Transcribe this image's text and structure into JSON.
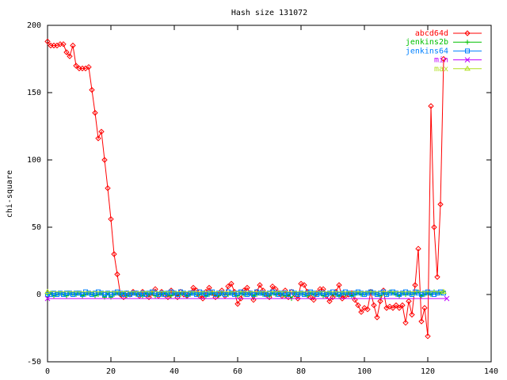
{
  "chart_data": {
    "type": "line",
    "title": "Hash size 131072",
    "ylabel": "chi-square",
    "xlim": [
      0,
      140
    ],
    "xticks": [
      0,
      20,
      40,
      60,
      80,
      100,
      120,
      140
    ],
    "ylim": [
      -50,
      200
    ],
    "yticks": [
      -50,
      0,
      50,
      100,
      150,
      200
    ],
    "legend": "top-right",
    "x": [
      0,
      1,
      2,
      3,
      4,
      5,
      6,
      7,
      8,
      9,
      10,
      11,
      12,
      13,
      14,
      15,
      16,
      17,
      18,
      19,
      20,
      21,
      22,
      23,
      24,
      25,
      26,
      27,
      28,
      29,
      30,
      31,
      32,
      33,
      34,
      35,
      36,
      37,
      38,
      39,
      40,
      41,
      42,
      43,
      44,
      45,
      46,
      47,
      48,
      49,
      50,
      51,
      52,
      53,
      54,
      55,
      56,
      57,
      58,
      59,
      60,
      61,
      62,
      63,
      64,
      65,
      66,
      67,
      68,
      69,
      70,
      71,
      72,
      73,
      74,
      75,
      76,
      77,
      78,
      79,
      80,
      81,
      82,
      83,
      84,
      85,
      86,
      87,
      88,
      89,
      90,
      91,
      92,
      93,
      94,
      95,
      96,
      97,
      98,
      99,
      100,
      101,
      102,
      103,
      104,
      105,
      106,
      107,
      108,
      109,
      110,
      111,
      112,
      113,
      114,
      115,
      116,
      117,
      118,
      119,
      120,
      121,
      122,
      123,
      124,
      125
    ],
    "series": [
      {
        "name": "abcd64d",
        "color": "#ff0000",
        "values": [
          188,
          185,
          185,
          185,
          186,
          186,
          180,
          177,
          185,
          170,
          168,
          168,
          168,
          169,
          152,
          135,
          116,
          121,
          100,
          79,
          56,
          30,
          15,
          0,
          -2,
          1,
          0,
          2,
          1,
          -1,
          2,
          0,
          -2,
          1,
          4,
          -1,
          2,
          0,
          -2,
          3,
          1,
          -2,
          2,
          0,
          -1,
          1,
          5,
          3,
          -1,
          -3,
          2,
          5,
          1,
          -2,
          0,
          3,
          -1,
          6,
          8,
          2,
          -7,
          -3,
          3,
          5,
          1,
          -4,
          2,
          7,
          3,
          0,
          -2,
          6,
          4,
          1,
          -1,
          3,
          -2,
          2,
          0,
          -3,
          8,
          7,
          2,
          -2,
          -4,
          1,
          4,
          4,
          -1,
          -5,
          -2,
          2,
          7,
          -3,
          -1,
          0,
          1,
          -4,
          -8,
          -13,
          -10,
          -11,
          2,
          -8,
          -17,
          -5,
          3,
          -10,
          -9,
          -10,
          -8,
          -10,
          -8,
          -21,
          -5,
          -15,
          7,
          34,
          -20,
          -10,
          -31,
          140,
          50,
          13,
          67,
          175
        ]
      },
      {
        "name": "jenkins2b",
        "color": "#00c000",
        "values": [
          0,
          1,
          -1,
          0,
          1,
          0,
          -1,
          1,
          0,
          0,
          1,
          -1,
          0,
          1,
          0,
          -1,
          0,
          1,
          -2,
          1,
          -2,
          0,
          1,
          0,
          1,
          -1,
          0,
          1,
          0,
          0,
          -1,
          1,
          0,
          1,
          -1,
          0,
          0,
          1,
          0,
          -1,
          1,
          0,
          0,
          1,
          -1,
          0,
          1,
          0,
          0,
          1,
          -1,
          0,
          1,
          0,
          -1,
          1,
          0,
          0,
          1,
          0,
          -1,
          1,
          0,
          0,
          1,
          -1,
          0,
          1,
          0,
          0,
          -1,
          1,
          0,
          1,
          0,
          -1,
          0,
          -3,
          1,
          0,
          1,
          0,
          -1,
          1,
          0,
          0,
          1,
          -1,
          0,
          1,
          0,
          0,
          -1,
          1,
          0,
          1,
          -1,
          0,
          1,
          0,
          0,
          1,
          2,
          1,
          0,
          -1,
          1,
          0,
          2,
          1,
          0,
          -1,
          1,
          0,
          1,
          0,
          1,
          2,
          -1,
          0,
          1,
          0,
          2,
          1,
          1,
          2
        ]
      },
      {
        "name": "jenkins64",
        "color": "#0080ff",
        "values": [
          0,
          0,
          1,
          0,
          1,
          0,
          1,
          1,
          0,
          1,
          1,
          0,
          2,
          1,
          0,
          1,
          2,
          1,
          0,
          1,
          0,
          1,
          2,
          1,
          0,
          1,
          0,
          1,
          1,
          0,
          1,
          0,
          1,
          2,
          1,
          0,
          1,
          0,
          1,
          2,
          1,
          0,
          2,
          1,
          0,
          1,
          1,
          0,
          2,
          1,
          0,
          1,
          2,
          0,
          1,
          1,
          0,
          2,
          1,
          0,
          1,
          2,
          1,
          0,
          1,
          0,
          2,
          1,
          1,
          0,
          1,
          2,
          1,
          0,
          1,
          1,
          0,
          2,
          1,
          0,
          1,
          0,
          1,
          2,
          1,
          0,
          1,
          1,
          0,
          1,
          2,
          1,
          0,
          1,
          2,
          1,
          0,
          1,
          2,
          1,
          0,
          1,
          2,
          1,
          0,
          1,
          2,
          0,
          1,
          2,
          1,
          0,
          1,
          2,
          1,
          0,
          2,
          1,
          0,
          1,
          2,
          1,
          0,
          1,
          2,
          1
        ]
      },
      {
        "name": "min",
        "color": "#c000ff",
        "x": [
          0,
          126
        ],
        "values": [
          -3,
          -3
        ]
      },
      {
        "name": "max",
        "color": "#b0e020",
        "x": [
          0,
          125
        ],
        "values": [
          2,
          2
        ]
      }
    ]
  }
}
